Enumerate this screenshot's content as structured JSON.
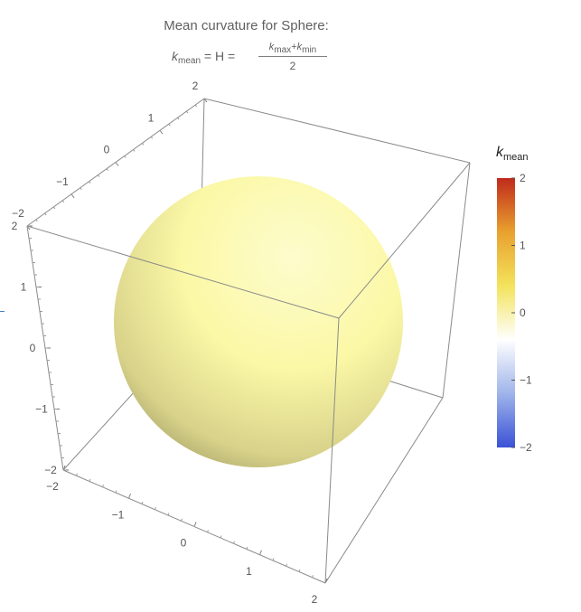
{
  "title": "Mean curvature for Sphere:",
  "formula": {
    "lhs_symbol": "k",
    "lhs_sub": "mean",
    "middle": " = H = ",
    "num_k1": "k",
    "num_sub1": "max",
    "num_plus": "+",
    "num_k2": "k",
    "num_sub2": "min",
    "denominator": "2"
  },
  "legend": {
    "symbol": "k",
    "sub": "mean",
    "ticks": [
      2,
      1,
      0,
      -1,
      -2
    ],
    "range": [
      -2,
      2
    ],
    "colors": [
      "#3a52d6",
      "#9fb4ea",
      "#ffffff",
      "#f3e35c",
      "#e9a12f",
      "#c02a1c"
    ]
  },
  "chart_data": {
    "type": "3d-surface",
    "title": "Mean curvature for Sphere:",
    "surface": "sphere",
    "radius": 1.5,
    "mean_curvature_value": 0.67,
    "surface_color": "#fbf8a6",
    "axes": {
      "x": {
        "ticks": [
          -2,
          -1,
          0,
          1,
          2
        ],
        "range": [
          -2,
          2
        ]
      },
      "y": {
        "ticks": [
          -2,
          -1,
          0,
          1,
          2
        ],
        "range": [
          -2,
          2
        ]
      },
      "z": {
        "ticks": [
          -2,
          -1,
          0,
          1,
          2
        ],
        "range": [
          -2,
          2
        ]
      }
    },
    "box": true,
    "colorbar_label": "k_mean",
    "colorbar_range": [
      -2,
      2
    ],
    "colorbar_ticks": [
      -2,
      -1,
      0,
      1,
      2
    ]
  }
}
